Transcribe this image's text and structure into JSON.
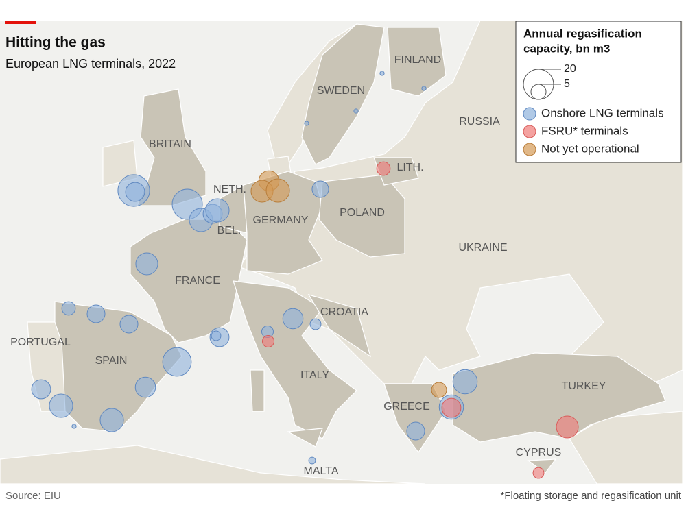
{
  "header": {
    "title": "Hitting the gas",
    "subtitle": "European LNG terminals, 2022"
  },
  "legend": {
    "title_lines": [
      "Annual regasification",
      "capacity, bn m3"
    ],
    "sizes": [
      20,
      5
    ],
    "items": [
      {
        "label": "Onshore LNG terminals",
        "color": "#8fb2dc",
        "stroke": "#5f88c0",
        "capacities": [
          22,
          8,
          20,
          12,
          8,
          12,
          6,
          10.6,
          4,
          7,
          7,
          18,
          9,
          8,
          12,
          12,
          8,
          2,
          3,
          9,
          2.6,
          7,
          13,
          13,
          1,
          0.4,
          0.4,
          0.4,
          0.4,
          0.4
        ]
      },
      {
        "label": "FSRU* terminals",
        "color": "#f07a78",
        "stroke": "#d85a58",
        "capacities": [
          4,
          3,
          8,
          10.6,
          2.6
        ]
      },
      {
        "label": "Not yet operational",
        "color": "#d49a55",
        "stroke": "#b87c38",
        "capacities": [
          9,
          10.6,
          12,
          5
        ]
      }
    ]
  },
  "labels": [
    "FINLAND",
    "SWEDEN",
    "RUSSIA",
    "BRITAIN",
    "LITH.",
    "NETH.",
    "GERMANY",
    "POLAND",
    "BEL.",
    "UKRAINE",
    "FRANCE",
    "CROATIA",
    "PORTUGAL",
    "SPAIN",
    "ITALY",
    "TURKEY",
    "GREECE",
    "CYPRUS",
    "MALTA"
  ],
  "footer": {
    "source": "Source: EIU",
    "note": "*Floating storage and regasification unit"
  }
}
